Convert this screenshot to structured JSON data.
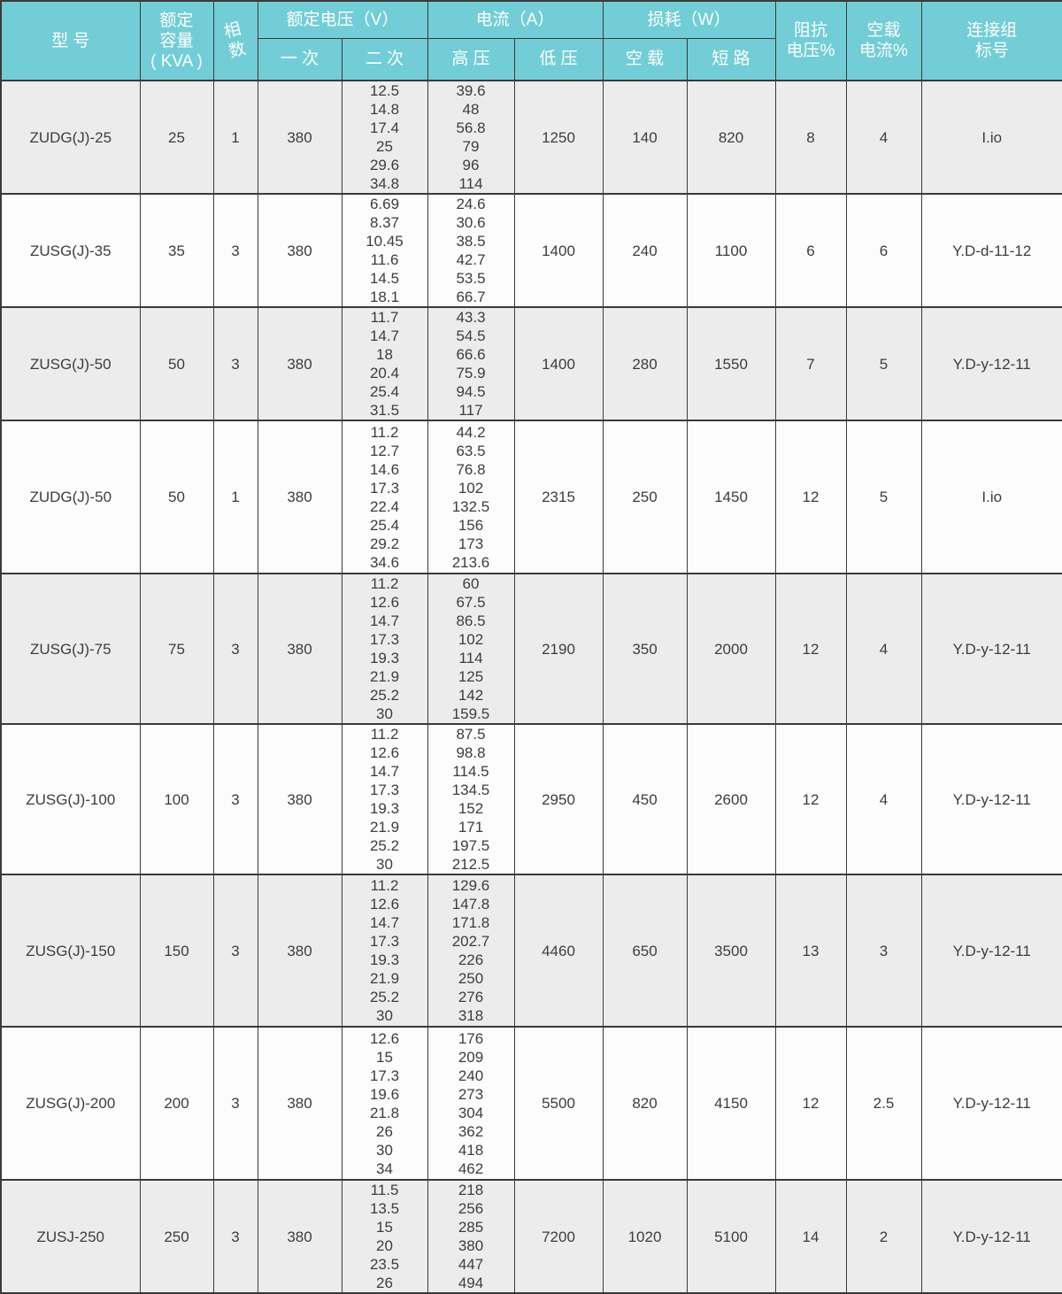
{
  "colors": {
    "header_bg": "#72cdd6",
    "header_text": "#ffffff",
    "row_bg": "#fcfcfc",
    "row_alt_bg": "#ececec",
    "border": "#3a3a3a",
    "body_text": "#3d3d3d"
  },
  "table": {
    "headers": {
      "model": "型    号",
      "capacity": "额定\n容量\n( KVA )",
      "phase": "相\n数",
      "voltage_group": "额定电压（V）",
      "voltage_primary": "一 次",
      "voltage_secondary": "二 次",
      "current_group": "电流（A）",
      "current_hv": "高 压",
      "current_lv": "低 压",
      "loss_group": "损耗（W）",
      "loss_noload": "空 载",
      "loss_short": "短 路",
      "impedance": "阻抗\n电压%",
      "noload_current": "空载\n电流%",
      "connection": "连接组\n标号"
    },
    "rows": [
      {
        "model": "ZUDG(J)-25",
        "capacity": "25",
        "phase": "1",
        "primary": "380",
        "secondary": [
          "12.5",
          "14.8",
          "17.4",
          "25",
          "29.6",
          "34.8"
        ],
        "hv": [
          "39.6",
          "48",
          "56.8",
          "79",
          "96",
          "114"
        ],
        "lv": "1250",
        "loss_noload": "140",
        "loss_short": "820",
        "impedance": "8",
        "noload_current": "4",
        "connection": "I.io"
      },
      {
        "model": "ZUSG(J)-35",
        "capacity": "35",
        "phase": "3",
        "primary": "380",
        "secondary": [
          "6.69",
          "8.37",
          "10.45",
          "11.6",
          "14.5",
          "18.1"
        ],
        "hv": [
          "24.6",
          "30.6",
          "38.5",
          "42.7",
          "53.5",
          "66.7"
        ],
        "lv": "1400",
        "loss_noload": "240",
        "loss_short": "1100",
        "impedance": "6",
        "noload_current": "6",
        "connection": "Y.D-d-11-12"
      },
      {
        "model": "ZUSG(J)-50",
        "capacity": "50",
        "phase": "3",
        "primary": "380",
        "secondary": [
          "11.7",
          "14.7",
          "18",
          "20.4",
          "25.4",
          "31.5"
        ],
        "hv": [
          "43.3",
          "54.5",
          "66.6",
          "75.9",
          "94.5",
          "117"
        ],
        "lv": "1400",
        "loss_noload": "280",
        "loss_short": "1550",
        "impedance": "7",
        "noload_current": "5",
        "connection": "Y.D-y-12-11"
      },
      {
        "model": "ZUDG(J)-50",
        "capacity": "50",
        "phase": "1",
        "primary": "380",
        "secondary": [
          "11.2",
          "12.7",
          "14.6",
          "17.3",
          "22.4",
          "25.4",
          "29.2",
          "34.6"
        ],
        "hv": [
          "44.2",
          "63.5",
          "76.8",
          "102",
          "132.5",
          "156",
          "173",
          "213.6"
        ],
        "lv": "2315",
        "loss_noload": "250",
        "loss_short": "1450",
        "impedance": "12",
        "noload_current": "5",
        "connection": "I.io"
      },
      {
        "model": "ZUSG(J)-75",
        "capacity": "75",
        "phase": "3",
        "primary": "380",
        "secondary": [
          "11.2",
          "12.6",
          "14.7",
          "17.3",
          "19.3",
          "21.9",
          "25.2",
          "30"
        ],
        "hv": [
          "60",
          "67.5",
          "86.5",
          "102",
          "114",
          "125",
          "142",
          "159.5"
        ],
        "lv": "2190",
        "loss_noload": "350",
        "loss_short": "2000",
        "impedance": "12",
        "noload_current": "4",
        "connection": "Y.D-y-12-11"
      },
      {
        "model": "ZUSG(J)-100",
        "capacity": "100",
        "phase": "3",
        "primary": "380",
        "secondary": [
          "11.2",
          "12.6",
          "14.7",
          "17.3",
          "19.3",
          "21.9",
          "25.2",
          "30"
        ],
        "hv": [
          "87.5",
          "98.8",
          "114.5",
          "134.5",
          "152",
          "171",
          "197.5",
          "212.5"
        ],
        "lv": "2950",
        "loss_noload": "450",
        "loss_short": "2600",
        "impedance": "12",
        "noload_current": "4",
        "connection": "Y.D-y-12-11"
      },
      {
        "model": "ZUSG(J)-150",
        "capacity": "150",
        "phase": "3",
        "primary": "380",
        "secondary": [
          "11.2",
          "12.6",
          "14.7",
          "17.3",
          "19.3",
          "21.9",
          "25.2",
          "30"
        ],
        "hv": [
          "129.6",
          "147.8",
          "171.8",
          "202.7",
          "226",
          "250",
          "276",
          "318"
        ],
        "lv": "4460",
        "loss_noload": "650",
        "loss_short": "3500",
        "impedance": "13",
        "noload_current": "3",
        "connection": "Y.D-y-12-11"
      },
      {
        "model": "ZUSG(J)-200",
        "capacity": "200",
        "phase": "3",
        "primary": "380",
        "secondary": [
          "12.6",
          "15",
          "17.3",
          "19.6",
          "21.8",
          "26",
          "30",
          "34"
        ],
        "hv": [
          "176",
          "209",
          "240",
          "273",
          "304",
          "362",
          "418",
          "462"
        ],
        "lv": "5500",
        "loss_noload": "820",
        "loss_short": "4150",
        "impedance": "12",
        "noload_current": "2.5",
        "connection": "Y.D-y-12-11"
      },
      {
        "model": "ZUSJ-250",
        "capacity": "250",
        "phase": "3",
        "primary": "380",
        "secondary": [
          "11.5",
          "13.5",
          "15",
          "20",
          "23.5",
          "26"
        ],
        "hv": [
          "218",
          "256",
          "285",
          "380",
          "447",
          "494"
        ],
        "lv": "7200",
        "loss_noload": "1020",
        "loss_short": "5100",
        "impedance": "14",
        "noload_current": "2",
        "connection": "Y.D-y-12-11"
      }
    ]
  }
}
